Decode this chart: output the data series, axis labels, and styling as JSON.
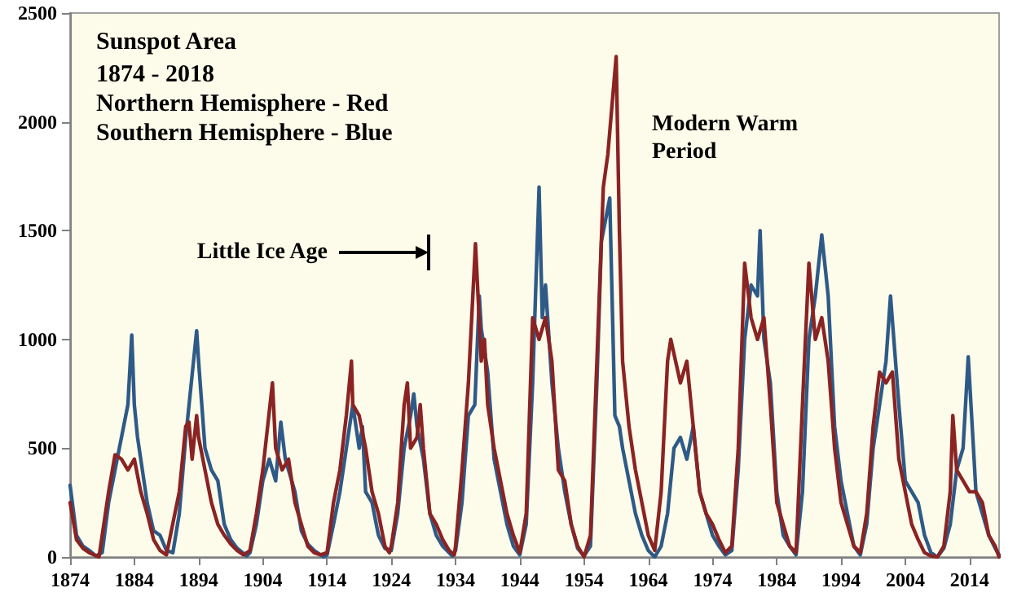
{
  "chart_data": {
    "type": "line",
    "title": "Sunspot Area",
    "subtitle": "1874 - 2018\nNorthern Hemisphere - Red\nSouthern Hemisphere - Blue",
    "annotations": [
      "Little Ice Age",
      "Modern Warm\nPeriod"
    ],
    "xlim": [
      1874,
      2018.6
    ],
    "xticks": [
      1874,
      1884,
      1894,
      1904,
      1914,
      1924,
      1934,
      1944,
      1954,
      1964,
      1974,
      1984,
      1994,
      2004,
      2014
    ],
    "ylim": [
      0,
      2500
    ],
    "yticks": [
      0,
      500,
      1000,
      1500,
      2000,
      2500
    ],
    "grid": false,
    "marker": "none",
    "line_style": "solid",
    "series": [
      {
        "color": "#2e5a87",
        "x": [
          1874,
          1875,
          1876,
          1877,
          1878,
          1879,
          1880,
          1881,
          1882,
          1883,
          1883.6,
          1884,
          1884.5,
          1885,
          1886,
          1887,
          1888,
          1889,
          1890,
          1891,
          1892,
          1893.7,
          1894,
          1895,
          1896,
          1897,
          1898,
          1899,
          1900,
          1901.5,
          1902,
          1903,
          1904,
          1905,
          1906,
          1906.8,
          1907.5,
          1908,
          1909,
          1910,
          1911,
          1912,
          1913.5,
          1914,
          1915,
          1916,
          1917,
          1918,
          1919,
          1919.5,
          1920,
          1921,
          1922,
          1923,
          1924,
          1925,
          1926,
          1927,
          1927.5,
          1928,
          1929,
          1930,
          1931,
          1932,
          1933.5,
          1934,
          1935,
          1936,
          1937,
          1937.7,
          1938,
          1939,
          1940,
          1941,
          1942,
          1943,
          1944,
          1945,
          1946,
          1947,
          1947.5,
          1948,
          1949,
          1950,
          1951,
          1952,
          1953,
          1954,
          1955,
          1956,
          1956.7,
          1958,
          1958.8,
          1959.5,
          1960,
          1961,
          1962,
          1963,
          1964,
          1965,
          1966,
          1967,
          1968,
          1969,
          1970,
          1971,
          1972,
          1973,
          1974,
          1975,
          1976,
          1977,
          1978,
          1979,
          1980,
          1981,
          1981.4,
          1982,
          1983,
          1984,
          1985,
          1986,
          1987,
          1988,
          1989,
          1990,
          1991,
          1992,
          1993,
          1994,
          1995,
          1996,
          1997,
          1998,
          1999,
          2000,
          2001,
          2001.7,
          2003,
          2004,
          2005,
          2006,
          2007,
          2008,
          2009,
          2010,
          2011,
          2012,
          2013,
          2013.8,
          2015,
          2016,
          2017,
          2018,
          2018.6
        ],
        "values": [
          330,
          100,
          50,
          30,
          5,
          20,
          250,
          400,
          550,
          700,
          1020,
          700,
          550,
          450,
          250,
          120,
          100,
          30,
          20,
          200,
          550,
          1040,
          900,
          500,
          400,
          350,
          150,
          80,
          40,
          5,
          20,
          150,
          350,
          450,
          350,
          620,
          450,
          400,
          300,
          120,
          60,
          30,
          0,
          10,
          150,
          300,
          500,
          700,
          500,
          600,
          300,
          250,
          100,
          40,
          30,
          200,
          500,
          650,
          750,
          600,
          450,
          200,
          100,
          50,
          5,
          30,
          250,
          650,
          700,
          1200,
          1050,
          850,
          450,
          300,
          150,
          50,
          10,
          150,
          800,
          1700,
          1100,
          1250,
          800,
          500,
          300,
          150,
          40,
          5,
          50,
          800,
          1450,
          1650,
          650,
          600,
          500,
          350,
          200,
          100,
          30,
          0,
          50,
          200,
          500,
          550,
          450,
          600,
          300,
          200,
          100,
          50,
          10,
          30,
          400,
          1000,
          1250,
          1200,
          1500,
          1000,
          800,
          300,
          100,
          50,
          10,
          300,
          1000,
          1200,
          1480,
          1200,
          600,
          350,
          200,
          50,
          10,
          150,
          500,
          700,
          900,
          1200,
          700,
          350,
          300,
          250,
          100,
          20,
          0,
          40,
          150,
          400,
          500,
          920,
          300,
          200,
          100,
          40,
          10
        ]
      },
      {
        "color": "#8b2323",
        "x": [
          1874,
          1875,
          1876,
          1877,
          1878.5,
          1880,
          1881,
          1882,
          1883,
          1884,
          1885,
          1886,
          1887,
          1888,
          1889,
          1891,
          1892,
          1892.5,
          1893,
          1893.7,
          1894,
          1895,
          1896,
          1897,
          1898,
          1899,
          1900,
          1901,
          1902,
          1903,
          1904,
          1905.5,
          1906,
          1907,
          1908,
          1909,
          1910,
          1911,
          1912,
          1913,
          1914,
          1915,
          1916,
          1917,
          1917.8,
          1918,
          1919,
          1920,
          1921,
          1922,
          1923,
          1923.7,
          1924,
          1925,
          1926,
          1926.5,
          1927,
          1928,
          1928.5,
          1929,
          1930,
          1931,
          1932,
          1933,
          1933.8,
          1934,
          1935,
          1936,
          1937.1,
          1937.5,
          1938,
          1938.5,
          1939,
          1940,
          1941,
          1942,
          1943,
          1944,
          1945,
          1946,
          1947,
          1948,
          1949,
          1950,
          1951,
          1952,
          1953,
          1954,
          1955,
          1956,
          1957,
          1957.7,
          1959,
          1959.5,
          1960,
          1961,
          1962,
          1963,
          1964,
          1965,
          1966,
          1967,
          1967.5,
          1969,
          1970,
          1971,
          1972,
          1973,
          1974,
          1975,
          1976,
          1977,
          1978,
          1979,
          1980,
          1981,
          1982,
          1983,
          1984,
          1985,
          1986,
          1987,
          1988,
          1989,
          1990,
          1991,
          1992,
          1993,
          1994,
          1995,
          1996,
          1997,
          1998,
          1999,
          2000,
          2001,
          2002,
          2002.5,
          2003,
          2004,
          2005,
          2006,
          2007,
          2008,
          2009,
          2010,
          2011,
          2011.4,
          2012,
          2013,
          2014,
          2015,
          2016,
          2017,
          2018,
          2018.6
        ],
        "values": [
          250,
          80,
          40,
          20,
          0,
          300,
          470,
          450,
          400,
          450,
          300,
          200,
          80,
          30,
          10,
          300,
          600,
          620,
          450,
          650,
          550,
          400,
          250,
          150,
          100,
          60,
          30,
          10,
          30,
          200,
          400,
          800,
          500,
          400,
          450,
          250,
          150,
          50,
          20,
          10,
          20,
          250,
          400,
          650,
          900,
          700,
          650,
          500,
          300,
          200,
          50,
          20,
          50,
          250,
          700,
          800,
          500,
          550,
          700,
          500,
          200,
          150,
          80,
          30,
          10,
          50,
          400,
          800,
          1440,
          1200,
          900,
          1000,
          700,
          500,
          350,
          200,
          100,
          20,
          200,
          1100,
          1000,
          1100,
          900,
          400,
          350,
          150,
          50,
          0,
          100,
          900,
          1700,
          1850,
          2300,
          1500,
          900,
          600,
          400,
          250,
          100,
          30,
          300,
          900,
          1000,
          800,
          900,
          600,
          300,
          200,
          150,
          80,
          20,
          50,
          500,
          1350,
          1100,
          1000,
          1100,
          700,
          250,
          150,
          50,
          20,
          700,
          1350,
          1000,
          1100,
          900,
          500,
          250,
          150,
          50,
          20,
          200,
          600,
          850,
          800,
          850,
          650,
          450,
          300,
          150,
          80,
          20,
          5,
          0,
          50,
          300,
          650,
          400,
          350,
          300,
          300,
          250,
          100,
          50,
          0
        ]
      }
    ]
  }
}
